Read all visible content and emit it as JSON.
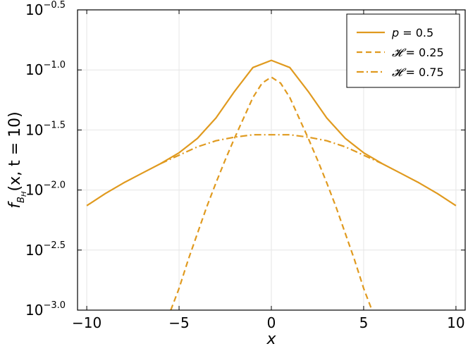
{
  "chart_data": {
    "type": "line",
    "title": "",
    "xlabel": "x",
    "ylabel": {
      "f": "f",
      "sub_B": "B",
      "sub_H": "H",
      "args": "(x, t = 10)"
    },
    "xlim": [
      -10.5,
      10.5
    ],
    "ylim": [
      -3.0,
      -0.5
    ],
    "y_scale": "log10",
    "x_ticks": [
      -10,
      -5,
      0,
      5,
      10
    ],
    "x_tick_labels": [
      "−10",
      "−5",
      "0",
      "5",
      "10"
    ],
    "y_ticks": [
      -3.0,
      -2.5,
      -2.0,
      -1.5,
      -1.0,
      -0.5
    ],
    "y_tick_base": "10",
    "y_tick_exponents": [
      "−3.0",
      "−2.5",
      "−2.0",
      "−1.5",
      "−1.0",
      "−0.5"
    ],
    "grid": true,
    "legend_position": "top-right",
    "color": "#e09a1f",
    "series": [
      {
        "name": "p = 0.5",
        "legend_var": "p",
        "legend_val": "= 0.5",
        "style": "solid",
        "x": [
          -10,
          -9,
          -8,
          -7,
          -6,
          -5,
          -4,
          -3,
          -2,
          -1,
          0,
          1,
          2,
          3,
          4,
          5,
          6,
          7,
          8,
          9,
          10
        ],
        "y": [
          -2.13,
          -2.03,
          -1.94,
          -1.86,
          -1.78,
          -1.69,
          -1.57,
          -1.4,
          -1.18,
          -0.98,
          -0.92,
          -0.98,
          -1.18,
          -1.4,
          -1.57,
          -1.69,
          -1.78,
          -1.86,
          -1.94,
          -2.03,
          -2.13
        ]
      },
      {
        "name": "𝓗 = 0.25",
        "legend_var": "𝓗",
        "legend_val": "= 0.25",
        "style": "dashed",
        "x": [
          -5.45,
          -5,
          -4.5,
          -4,
          -3.5,
          -3,
          -2.5,
          -2,
          -1.5,
          -1,
          -0.5,
          0,
          0.5,
          1,
          1.5,
          2,
          2.5,
          3,
          3.5,
          4,
          4.5,
          5,
          5.45
        ],
        "y": [
          -3.0,
          -2.82,
          -2.58,
          -2.36,
          -2.14,
          -1.94,
          -1.75,
          -1.57,
          -1.4,
          -1.23,
          -1.11,
          -1.06,
          -1.11,
          -1.23,
          -1.4,
          -1.57,
          -1.75,
          -1.94,
          -2.14,
          -2.36,
          -2.58,
          -2.82,
          -3.0
        ]
      },
      {
        "name": "𝓗 = 0.75",
        "legend_var": "𝓗",
        "legend_val": "= 0.75",
        "style": "dashdot",
        "x": [
          -6,
          -5,
          -4,
          -3,
          -2,
          -1,
          0,
          1,
          2,
          3,
          4,
          5,
          6
        ],
        "y": [
          -1.78,
          -1.71,
          -1.64,
          -1.59,
          -1.56,
          -1.54,
          -1.54,
          -1.54,
          -1.56,
          -1.59,
          -1.64,
          -1.71,
          -1.78
        ]
      }
    ]
  }
}
